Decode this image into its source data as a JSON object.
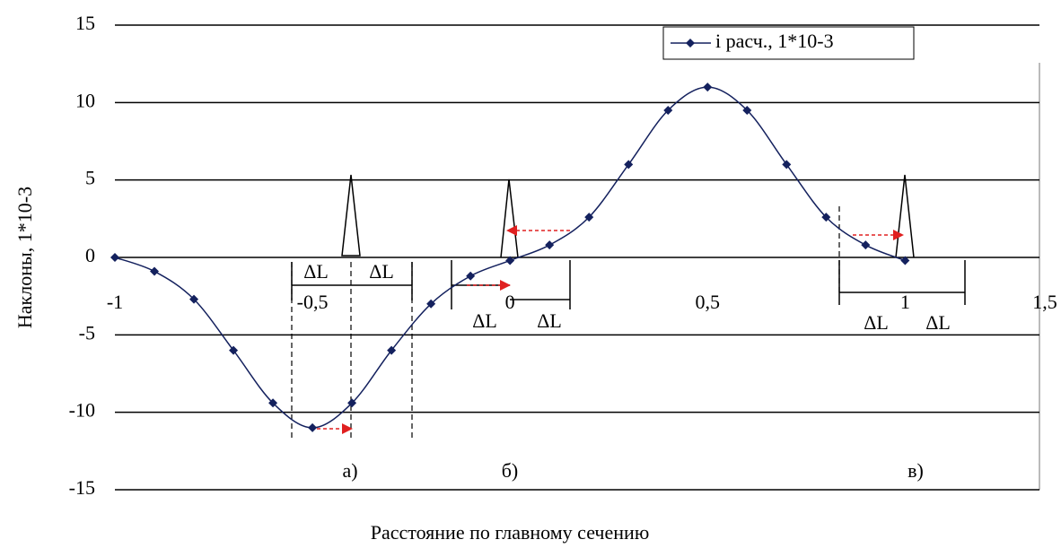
{
  "chart_data": {
    "type": "line",
    "ylabel": "Наклоны, 1*10-3",
    "xlabel": "Расстояние по главному сечению",
    "x": [
      -1,
      -0.9,
      -0.8,
      -0.7,
      -0.6,
      -0.5,
      -0.4,
      -0.3,
      -0.2,
      -0.1,
      0,
      0.1,
      0.2,
      0.3,
      0.4,
      0.5,
      0.6,
      0.7,
      0.8,
      0.9,
      1
    ],
    "series": [
      {
        "name": "i расч., 1*10-3",
        "color": "#14215e",
        "values": [
          0,
          -0.9,
          -2.7,
          -6,
          -9.4,
          -11,
          -9.4,
          -6,
          -3,
          -1.2,
          -0.2,
          0.8,
          2.6,
          6,
          9.5,
          11,
          9.5,
          6,
          2.6,
          0.8,
          -0.2
        ]
      }
    ],
    "xlim": [
      -1,
      1.34
    ],
    "xticks": [
      -1,
      {
        "value": -0.5,
        "label": "-0,5"
      },
      0,
      {
        "value": 0.5,
        "label": "0,5"
      },
      1,
      {
        "value": 1.5,
        "label": "1,5"
      }
    ],
    "ylim": [
      -15,
      15
    ],
    "yticks": [
      -15,
      -10,
      -5,
      0,
      5,
      10,
      15
    ],
    "grid": true,
    "legend": "top-right",
    "annotations": [
      "ΔL",
      "ΔL",
      "ΔL",
      "ΔL",
      "ΔL",
      "ΔL",
      "а)",
      "б)",
      "в)"
    ]
  }
}
